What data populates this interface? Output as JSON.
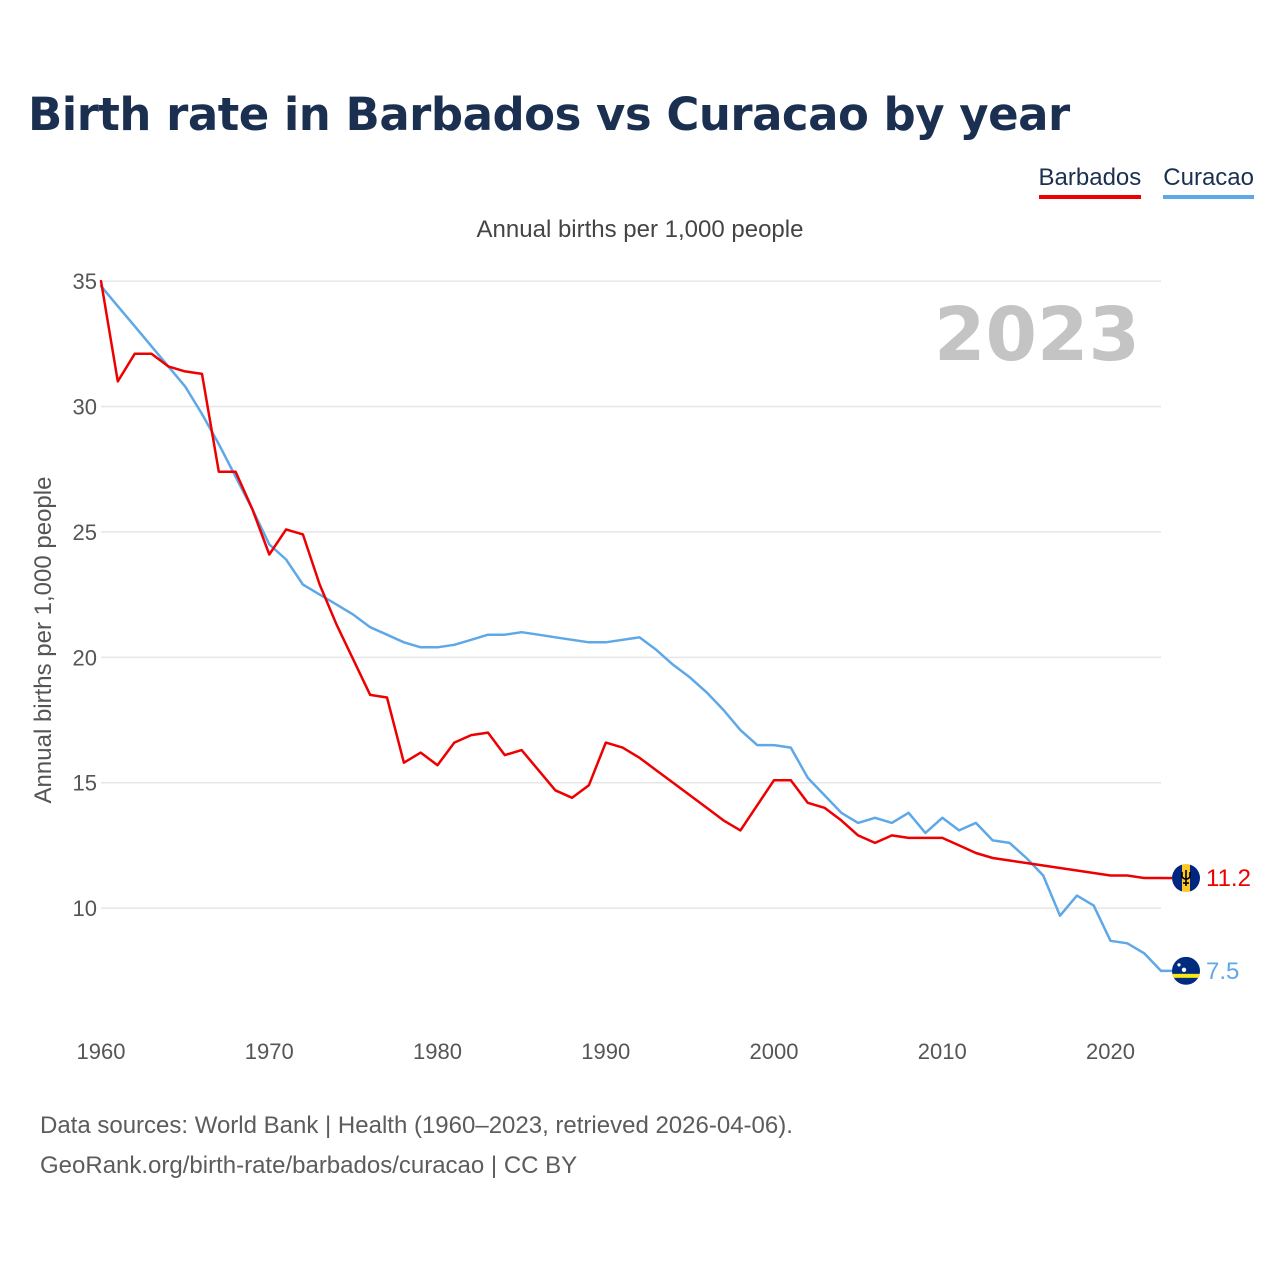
{
  "title": "Birth rate in Barbados vs Curacao by year",
  "subtitle": "Annual births per 1,000 people",
  "year_watermark": "2023",
  "legend": [
    {
      "label": "Barbados",
      "color": "#ee0000"
    },
    {
      "label": "Curacao",
      "color": "#5ea8e8"
    }
  ],
  "footer": {
    "line1": "Data sources: World Bank | Health (1960–2023, retrieved 2026-04-06).",
    "line2": "GeoRank.org/birth-rate/barbados/curacao | CC BY"
  },
  "chart_data": {
    "type": "line",
    "title": "Birth rate in Barbados vs Curacao by year",
    "ylabel": "Annual births per 1,000 people",
    "xlabel": "",
    "xlim": [
      1960,
      2023
    ],
    "ylim": [
      5.7,
      36
    ],
    "x_ticks": [
      1960,
      1970,
      1980,
      1990,
      2000,
      2010,
      2020
    ],
    "y_ticks": [
      10,
      15,
      20,
      25,
      30,
      35
    ],
    "grid": true,
    "x": [
      1960,
      1961,
      1962,
      1963,
      1964,
      1965,
      1966,
      1967,
      1968,
      1969,
      1970,
      1971,
      1972,
      1973,
      1974,
      1975,
      1976,
      1977,
      1978,
      1979,
      1980,
      1981,
      1982,
      1983,
      1984,
      1985,
      1986,
      1987,
      1988,
      1989,
      1990,
      1991,
      1992,
      1993,
      1994,
      1995,
      1996,
      1997,
      1998,
      1999,
      2000,
      2001,
      2002,
      2003,
      2004,
      2005,
      2006,
      2007,
      2008,
      2009,
      2010,
      2011,
      2012,
      2013,
      2014,
      2015,
      2016,
      2017,
      2018,
      2019,
      2020,
      2021,
      2022,
      2023
    ],
    "series": [
      {
        "name": "Barbados",
        "color": "#ee0000",
        "end_label": "11.2",
        "values": [
          35.0,
          31.0,
          32.1,
          32.1,
          31.6,
          31.4,
          31.3,
          27.4,
          27.4,
          25.9,
          24.1,
          25.1,
          24.9,
          22.9,
          21.3,
          19.9,
          18.5,
          18.4,
          15.8,
          16.2,
          15.7,
          16.6,
          16.9,
          17.0,
          16.1,
          16.3,
          15.5,
          14.7,
          14.4,
          14.9,
          16.6,
          16.4,
          16.0,
          15.5,
          15.0,
          14.5,
          14.0,
          13.5,
          13.1,
          14.1,
          15.1,
          15.1,
          14.2,
          14.0,
          13.5,
          12.9,
          12.6,
          12.9,
          12.8,
          12.8,
          12.8,
          12.5,
          12.2,
          12.0,
          11.9,
          11.8,
          11.7,
          11.6,
          11.5,
          11.4,
          11.3,
          11.3,
          11.2,
          11.2
        ]
      },
      {
        "name": "Curacao",
        "color": "#5ea8e8",
        "end_label": "7.5",
        "values": [
          34.8,
          34.0,
          33.2,
          32.4,
          31.6,
          30.8,
          29.7,
          28.5,
          27.2,
          25.9,
          24.5,
          23.9,
          22.9,
          22.5,
          22.1,
          21.7,
          21.2,
          20.9,
          20.6,
          20.4,
          20.4,
          20.5,
          20.7,
          20.9,
          20.9,
          21.0,
          20.9,
          20.8,
          20.7,
          20.6,
          20.6,
          20.7,
          20.8,
          20.3,
          19.7,
          19.2,
          18.6,
          17.9,
          17.1,
          16.5,
          16.5,
          16.4,
          15.2,
          14.5,
          13.8,
          13.4,
          13.6,
          13.4,
          13.8,
          13.0,
          13.6,
          13.1,
          13.4,
          12.7,
          12.6,
          12.0,
          11.3,
          9.7,
          10.5,
          10.1,
          8.7,
          8.6,
          8.2,
          7.5
        ]
      }
    ]
  }
}
